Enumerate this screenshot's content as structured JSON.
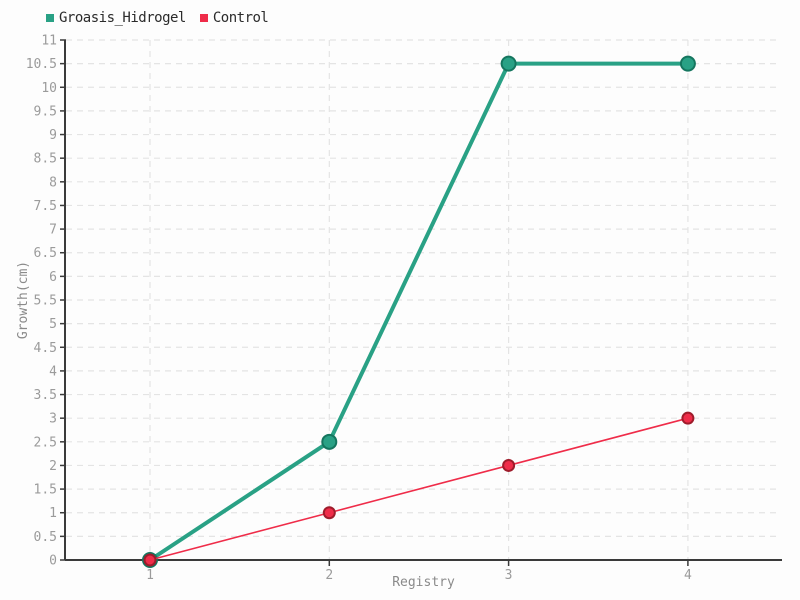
{
  "chart_data": {
    "type": "line",
    "title": "",
    "xlabel": "Registry",
    "ylabel": "Growth(cm)",
    "x": [
      1,
      2,
      3,
      4
    ],
    "x_tick_labels": [
      "1",
      "2",
      "3",
      "4"
    ],
    "ylim": [
      0,
      11
    ],
    "y_tick_step": 0.5,
    "grid": "dashed",
    "legend_position": "top-left",
    "series": [
      {
        "name": "Groasis_Hidrogel",
        "values": [
          0,
          2.5,
          10.5,
          10.5
        ],
        "color": "#29a185",
        "marker_stroke": "#15765f",
        "line_width": 4,
        "marker_radius": 7
      },
      {
        "name": "Control",
        "values": [
          0,
          1,
          2,
          3
        ],
        "color": "#ef2c49",
        "marker_stroke": "#9e1c2b",
        "line_width": 1.6,
        "marker_radius": 5.5
      }
    ],
    "colors": {
      "background": "#fdfdfd",
      "axis": "#3a3a3a",
      "grid": "#e4e4e4",
      "tick_label": "#9b9b9b",
      "axis_title": "#8a8a8a",
      "legend_text": "#2b2b2b"
    }
  }
}
